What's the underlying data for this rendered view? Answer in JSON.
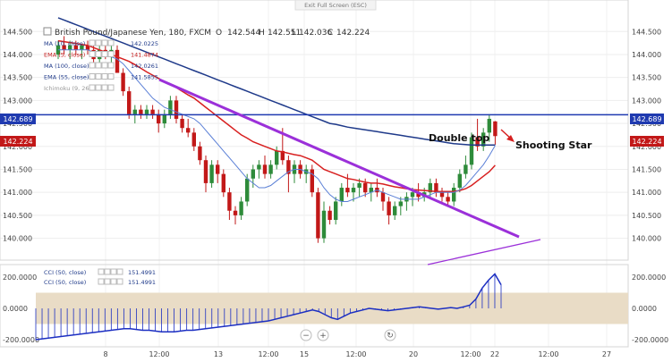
{
  "toolbar": {
    "exit_fullscreen": "Exit Full Screen (ESC)"
  },
  "header": {
    "symbol": "British Pound/Japanese Yen, 180, FXCM",
    "o_label": "O",
    "o_value": "142.544",
    "h_label": "H",
    "h_value": "142.551",
    "l_label": "L",
    "l_value": "142.036",
    "c_label": "C",
    "c_value": "142.224"
  },
  "legend": [
    {
      "label": "MA (10, close)",
      "value": "142.0225",
      "color": "#1f3a8a"
    },
    {
      "label": "EMA (5, close)",
      "value": "141.4874",
      "color": "#c21818"
    },
    {
      "label": "MA (100, close)",
      "value": "142.0261",
      "color": "#1f3a8a"
    },
    {
      "label": "EMA (55, close)",
      "value": "141.5855",
      "color": "#1f3a8a"
    },
    {
      "label": "Ichimoku (9, 26, 52, 26)",
      "value": "",
      "color": "#999999"
    }
  ],
  "cci_legend": [
    {
      "label": "CCI (50, close)",
      "value": "151.4991",
      "color": "#1f3a8a"
    },
    {
      "label": "CCI (50, close)",
      "value": "151.4991",
      "color": "#1f3a8a"
    }
  ],
  "annotations": {
    "double_top": "Double top",
    "shooting_star": "Shooting Star"
  },
  "price_badges": {
    "line_level": "142.689",
    "last_price": "142.224"
  },
  "zoom_controls": {
    "minus": "−",
    "plus": "+",
    "reset": "↻"
  },
  "colors": {
    "up": "#2e8b3a",
    "down": "#c21818",
    "ma": "#1f3a8a",
    "ema": "#d82020",
    "trend": "#9b30d9",
    "hline": "#1f3ab0",
    "cci": "#1c2fc2",
    "cci_band": "#e9dcc6"
  },
  "chart_data": {
    "type": "candlestick",
    "price_axis": [
      "144.500",
      "144.000",
      "143.500",
      "143.000",
      "142.500",
      "142.000",
      "141.500",
      "141.000",
      "140.500",
      "140.000"
    ],
    "time_axis": [
      "8",
      "12:00",
      "13",
      "12:00",
      "15",
      "12:00",
      "20",
      "12:00",
      "22",
      "12:00",
      "27"
    ],
    "ylim": [
      139.7,
      144.7
    ],
    "horizontal_line": 142.689,
    "candles": [
      [
        144.0,
        144.3,
        143.9,
        144.2
      ],
      [
        144.2,
        144.4,
        144.0,
        144.1
      ],
      [
        144.1,
        144.3,
        143.9,
        144.2
      ],
      [
        144.2,
        144.3,
        144.0,
        144.1
      ],
      [
        144.1,
        144.2,
        143.9,
        144.2
      ],
      [
        144.2,
        144.3,
        144.0,
        144.1
      ],
      [
        144.1,
        144.2,
        143.8,
        143.9
      ],
      [
        143.9,
        144.2,
        143.7,
        144.1
      ],
      [
        144.1,
        144.2,
        143.9,
        144.0
      ],
      [
        144.0,
        144.2,
        143.8,
        144.1
      ],
      [
        144.1,
        144.2,
        143.6,
        143.6
      ],
      [
        143.6,
        143.7,
        143.1,
        143.2
      ],
      [
        143.2,
        143.3,
        142.6,
        142.7
      ],
      [
        142.7,
        142.9,
        142.5,
        142.8
      ],
      [
        142.8,
        142.9,
        142.6,
        142.7
      ],
      [
        142.7,
        142.9,
        142.6,
        142.8
      ],
      [
        142.8,
        142.9,
        142.6,
        142.7
      ],
      [
        142.7,
        142.8,
        142.3,
        142.5
      ],
      [
        142.5,
        142.8,
        142.4,
        142.7
      ],
      [
        142.7,
        143.1,
        142.6,
        143.0
      ],
      [
        143.0,
        143.1,
        142.5,
        142.6
      ],
      [
        142.6,
        142.7,
        142.3,
        142.4
      ],
      [
        142.4,
        142.6,
        142.2,
        142.3
      ],
      [
        142.3,
        142.4,
        141.9,
        142.0
      ],
      [
        142.0,
        142.1,
        141.6,
        141.7
      ],
      [
        141.7,
        141.8,
        141.0,
        141.2
      ],
      [
        141.2,
        141.7,
        141.1,
        141.6
      ],
      [
        141.6,
        141.7,
        141.2,
        141.4
      ],
      [
        141.4,
        141.5,
        140.9,
        141.0
      ],
      [
        141.0,
        141.1,
        140.4,
        140.6
      ],
      [
        140.6,
        140.7,
        140.3,
        140.5
      ],
      [
        140.5,
        140.9,
        140.4,
        140.8
      ],
      [
        140.8,
        141.4,
        140.7,
        141.3
      ],
      [
        141.3,
        141.6,
        141.1,
        141.5
      ],
      [
        141.5,
        141.7,
        141.3,
        141.6
      ],
      [
        141.6,
        141.8,
        141.3,
        141.4
      ],
      [
        141.4,
        141.7,
        141.3,
        141.6
      ],
      [
        141.6,
        142.0,
        141.5,
        141.9
      ],
      [
        141.9,
        142.4,
        141.6,
        141.7
      ],
      [
        141.7,
        141.8,
        141.0,
        141.4
      ],
      [
        141.4,
        141.7,
        141.2,
        141.6
      ],
      [
        141.6,
        141.7,
        141.3,
        141.4
      ],
      [
        141.4,
        141.6,
        141.2,
        141.5
      ],
      [
        141.5,
        141.6,
        140.9,
        141.0
      ],
      [
        141.0,
        141.1,
        139.9,
        140.0
      ],
      [
        140.0,
        140.8,
        139.9,
        140.6
      ],
      [
        140.6,
        140.7,
        140.3,
        140.4
      ],
      [
        140.4,
        140.9,
        140.3,
        140.8
      ],
      [
        140.8,
        141.2,
        140.7,
        141.1
      ],
      [
        141.1,
        141.4,
        140.9,
        141.0
      ],
      [
        141.0,
        141.2,
        140.8,
        141.1
      ],
      [
        141.1,
        141.3,
        140.9,
        141.2
      ],
      [
        141.2,
        141.3,
        140.9,
        141.0
      ],
      [
        141.0,
        141.2,
        140.8,
        141.1
      ],
      [
        141.1,
        141.3,
        140.9,
        141.0
      ],
      [
        141.0,
        141.1,
        140.6,
        140.8
      ],
      [
        140.8,
        140.9,
        140.3,
        140.5
      ],
      [
        140.5,
        140.8,
        140.4,
        140.7
      ],
      [
        140.7,
        140.9,
        140.5,
        140.8
      ],
      [
        140.8,
        141.0,
        140.6,
        140.9
      ],
      [
        140.9,
        141.1,
        140.7,
        141.0
      ],
      [
        141.0,
        141.2,
        140.8,
        140.9
      ],
      [
        140.9,
        141.1,
        140.8,
        141.0
      ],
      [
        141.0,
        141.3,
        140.9,
        141.2
      ],
      [
        141.2,
        141.3,
        140.9,
        141.0
      ],
      [
        141.0,
        141.1,
        140.8,
        140.9
      ],
      [
        140.9,
        141.0,
        140.7,
        140.8
      ],
      [
        140.8,
        141.2,
        140.7,
        141.1
      ],
      [
        141.1,
        141.5,
        141.0,
        141.4
      ],
      [
        141.4,
        141.8,
        141.3,
        141.6
      ],
      [
        141.6,
        142.3,
        141.5,
        142.2
      ],
      [
        142.2,
        142.6,
        141.9,
        142.0
      ],
      [
        142.0,
        142.4,
        141.9,
        142.3
      ],
      [
        142.3,
        142.7,
        142.1,
        142.6
      ],
      [
        142.544,
        142.551,
        142.036,
        142.224
      ]
    ],
    "ma10": [
      144.1,
      144.1,
      144.1,
      144.1,
      144.1,
      144.1,
      144.05,
      144.05,
      144.0,
      143.95,
      143.9,
      143.8,
      143.65,
      143.5,
      143.35,
      143.2,
      143.05,
      142.95,
      142.85,
      142.8,
      142.75,
      142.7,
      142.65,
      142.6,
      142.5,
      142.35,
      142.2,
      142.05,
      141.9,
      141.75,
      141.6,
      141.45,
      141.3,
      141.2,
      141.1,
      141.1,
      141.15,
      141.25,
      141.35,
      141.45,
      141.5,
      141.5,
      141.45,
      141.4,
      141.3,
      141.1,
      140.95,
      140.85,
      140.8,
      140.8,
      140.85,
      140.9,
      140.95,
      141.0,
      141.05,
      141.0,
      140.95,
      140.9,
      140.85,
      140.85,
      140.85,
      140.85,
      140.9,
      140.95,
      141.0,
      141.0,
      141.0,
      141.0,
      141.05,
      141.15,
      141.3,
      141.45,
      141.6,
      141.8,
      142.02
    ],
    "ema55": [
      144.3,
      144.28,
      144.26,
      144.24,
      144.22,
      144.2,
      144.15,
      144.1,
      144.05,
      144.0,
      143.95,
      143.9,
      143.85,
      143.78,
      143.7,
      143.62,
      143.55,
      143.48,
      143.4,
      143.35,
      143.28,
      143.2,
      143.12,
      143.05,
      142.95,
      142.85,
      142.75,
      142.65,
      142.55,
      142.45,
      142.35,
      142.25,
      142.18,
      142.1,
      142.05,
      142.0,
      141.95,
      141.9,
      141.88,
      141.85,
      141.82,
      141.8,
      141.75,
      141.7,
      141.6,
      141.5,
      141.45,
      141.4,
      141.35,
      141.3,
      141.28,
      141.25,
      141.22,
      141.2,
      141.2,
      141.18,
      141.15,
      141.12,
      141.1,
      141.08,
      141.06,
      141.05,
      141.04,
      141.03,
      141.02,
      141.02,
      141.02,
      141.02,
      141.04,
      141.08,
      141.15,
      141.25,
      141.35,
      141.45,
      141.59
    ],
    "ma100": [
      144.8,
      144.75,
      144.7,
      144.65,
      144.6,
      144.55,
      144.5,
      144.45,
      144.4,
      144.35,
      144.3,
      144.25,
      144.2,
      144.15,
      144.1,
      144.05,
      144.0,
      143.95,
      143.9,
      143.85,
      143.8,
      143.75,
      143.7,
      143.65,
      143.6,
      143.55,
      143.5,
      143.45,
      143.4,
      143.35,
      143.3,
      143.25,
      143.2,
      143.15,
      143.1,
      143.05,
      143.0,
      142.95,
      142.9,
      142.85,
      142.8,
      142.75,
      142.7,
      142.65,
      142.6,
      142.55,
      142.5,
      142.48,
      142.45,
      142.42,
      142.4,
      142.38,
      142.36,
      142.34,
      142.32,
      142.3,
      142.28,
      142.26,
      142.24,
      142.22,
      142.2,
      142.18,
      142.16,
      142.14,
      142.12,
      142.1,
      142.08,
      142.06,
      142.05,
      142.04,
      142.03,
      142.03,
      142.03,
      142.03,
      142.03
    ],
    "cci": [
      -200,
      -195,
      -190,
      -185,
      -180,
      -175,
      -170,
      -165,
      -160,
      -155,
      -150,
      -145,
      -140,
      -135,
      -130,
      -130,
      -135,
      -140,
      -140,
      -145,
      -150,
      -150,
      -150,
      -145,
      -140,
      -140,
      -135,
      -130,
      -125,
      -120,
      -115,
      -110,
      -105,
      -100,
      -95,
      -90,
      -85,
      -80,
      -70,
      -60,
      -50,
      -40,
      -30,
      -20,
      -10,
      -20,
      -40,
      -60,
      -70,
      -50,
      -30,
      -20,
      -10,
      0,
      -5,
      -10,
      -15,
      -10,
      -5,
      0,
      5,
      10,
      5,
      0,
      -5,
      0,
      5,
      0,
      10,
      20,
      60,
      130,
      180,
      220,
      151
    ],
    "trendline_upper": [
      [
        178,
        89
      ],
      [
        580,
        265
      ]
    ],
    "trendline_lower": [
      [
        478,
        296
      ],
      [
        604,
        268
      ]
    ]
  }
}
